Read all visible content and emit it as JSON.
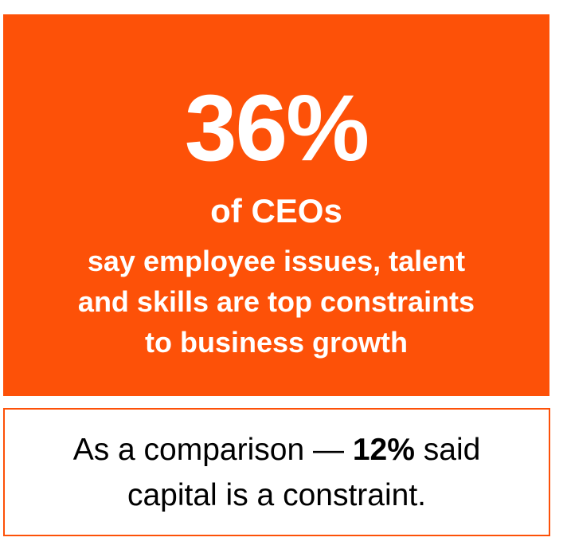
{
  "stat": {
    "value": "36%",
    "subject": "of CEOs",
    "lines": [
      "say employee issues, talent",
      "and skills are top constraints",
      "to business growth"
    ]
  },
  "comparison": {
    "lead": "As a comparison —",
    "value": "12%",
    "tail": "said",
    "line2": "capital is a constraint."
  }
}
